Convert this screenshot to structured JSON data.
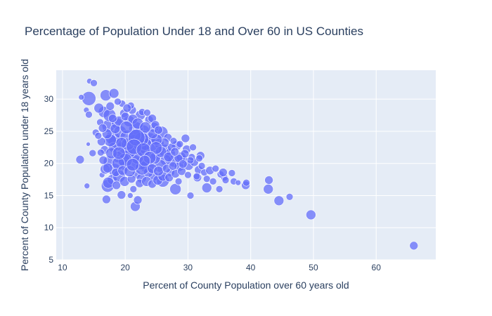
{
  "chart_data": {
    "type": "scatter",
    "title": "Percentage of Population Under 18 and Over 60 in US Counties",
    "xlabel": "Percent of County Population over 60 years old",
    "ylabel": "Percent of County Population under 18 years old",
    "xlim": [
      9,
      69.5
    ],
    "ylim": [
      5,
      34.5
    ],
    "xticks": [
      10,
      20,
      30,
      40,
      50,
      60
    ],
    "yticks": [
      5,
      10,
      15,
      20,
      25,
      30
    ],
    "grid": true,
    "legend": "none",
    "colors": {
      "marker": "#636efa",
      "plot_bg": "#e5ecf6",
      "grid": "#ffffff",
      "text": "#2a3f5f"
    },
    "series": [
      {
        "points": [
          [
            66.0,
            7.2,
            6
          ],
          [
            49.6,
            12.0,
            7
          ],
          [
            44.5,
            14.2,
            7
          ],
          [
            46.2,
            14.8,
            5
          ],
          [
            42.8,
            16.0,
            7
          ],
          [
            42.9,
            17.4,
            6
          ],
          [
            39.2,
            16.6,
            6
          ],
          [
            39.3,
            17.0,
            5
          ],
          [
            37.3,
            17.2,
            5
          ],
          [
            37.0,
            18.5,
            5
          ],
          [
            35.8,
            17.8,
            5
          ],
          [
            35.2,
            18.3,
            5
          ],
          [
            35.0,
            16.0,
            5
          ],
          [
            33.0,
            16.2,
            7
          ],
          [
            31.5,
            17.8,
            6
          ],
          [
            30.4,
            15.0,
            5
          ],
          [
            32.0,
            21.2,
            6
          ],
          [
            29.6,
            23.9,
            6
          ],
          [
            28.0,
            16.0,
            8
          ],
          [
            28.5,
            17.2,
            5
          ],
          [
            27.2,
            18.6,
            6
          ],
          [
            26.0,
            17.3,
            9
          ],
          [
            24.5,
            18.0,
            7
          ],
          [
            23.5,
            19.6,
            10
          ],
          [
            22.5,
            20.0,
            9
          ],
          [
            21.5,
            20.2,
            10
          ],
          [
            20.5,
            21.5,
            8
          ],
          [
            19.5,
            22.3,
            9
          ],
          [
            18.5,
            23.1,
            11
          ],
          [
            18.0,
            24.0,
            10
          ],
          [
            17.3,
            25.8,
            9
          ],
          [
            16.6,
            28.0,
            8
          ],
          [
            15.8,
            28.6,
            7
          ],
          [
            14.2,
            30.1,
            10
          ],
          [
            17.5,
            27.5,
            9
          ],
          [
            16.9,
            30.6,
            8
          ],
          [
            18.2,
            30.9,
            7
          ],
          [
            14.3,
            32.8,
            4
          ],
          [
            15.0,
            32.5,
            5
          ],
          [
            13.0,
            30.3,
            4
          ],
          [
            13.8,
            28.3,
            4
          ],
          [
            14.2,
            27.6,
            5
          ],
          [
            12.8,
            20.6,
            6
          ],
          [
            13.9,
            16.5,
            4
          ],
          [
            14.8,
            21.6,
            5
          ],
          [
            14.1,
            23.0,
            3
          ],
          [
            15.3,
            24.8,
            5
          ],
          [
            16.0,
            26.4,
            5
          ],
          [
            16.3,
            18.2,
            4
          ],
          [
            17.2,
            16.5,
            9
          ],
          [
            17.0,
            14.4,
            6
          ],
          [
            19.4,
            15.1,
            6
          ],
          [
            21.6,
            13.3,
            7
          ],
          [
            22.0,
            14.3,
            6
          ],
          [
            21.3,
            16.0,
            5
          ],
          [
            20.8,
            15.0,
            4
          ],
          [
            16.7,
            22.1,
            6
          ],
          [
            17.4,
            20.3,
            8
          ],
          [
            18.3,
            19.0,
            9
          ],
          [
            17.9,
            17.5,
            7
          ],
          [
            19.0,
            18.0,
            9
          ],
          [
            20.1,
            19.7,
            8
          ],
          [
            21.8,
            18.3,
            6
          ],
          [
            22.6,
            17.7,
            7
          ],
          [
            23.2,
            21.7,
            9
          ],
          [
            24.1,
            22.9,
            10
          ],
          [
            25.0,
            21.2,
            8
          ],
          [
            25.8,
            24.8,
            9
          ],
          [
            24.6,
            25.6,
            7
          ],
          [
            23.8,
            26.8,
            6
          ],
          [
            22.9,
            25.0,
            9
          ],
          [
            21.7,
            25.4,
            10
          ],
          [
            20.6,
            26.6,
            8
          ],
          [
            19.8,
            27.8,
            6
          ],
          [
            21.1,
            28.3,
            6
          ],
          [
            22.4,
            27.5,
            7
          ],
          [
            20.9,
            29.0,
            5
          ],
          [
            19.5,
            29.3,
            5
          ],
          [
            18.7,
            26.2,
            8
          ],
          [
            19.2,
            24.9,
            9
          ],
          [
            20.3,
            24.1,
            10
          ],
          [
            21.4,
            23.4,
            10
          ],
          [
            22.2,
            22.5,
            11
          ],
          [
            23.0,
            24.1,
            9
          ],
          [
            24.0,
            23.9,
            8
          ],
          [
            25.4,
            23.1,
            7
          ],
          [
            26.3,
            22.0,
            9
          ],
          [
            27.1,
            21.5,
            8
          ],
          [
            27.8,
            20.4,
            9
          ],
          [
            28.6,
            19.5,
            7
          ],
          [
            29.3,
            20.6,
            6
          ],
          [
            30.1,
            19.7,
            7
          ],
          [
            31.0,
            20.2,
            6
          ],
          [
            31.7,
            19.0,
            6
          ],
          [
            32.6,
            18.6,
            5
          ],
          [
            33.5,
            18.9,
            6
          ],
          [
            34.4,
            19.2,
            5
          ],
          [
            35.6,
            18.6,
            6
          ],
          [
            30.6,
            21.0,
            5
          ],
          [
            29.8,
            22.2,
            6
          ],
          [
            28.9,
            21.0,
            7
          ],
          [
            28.2,
            22.8,
            7
          ],
          [
            27.4,
            22.5,
            6
          ],
          [
            26.5,
            20.5,
            8
          ],
          [
            25.6,
            19.6,
            9
          ],
          [
            24.7,
            20.8,
            8
          ],
          [
            23.7,
            18.6,
            7
          ],
          [
            22.7,
            19.3,
            10
          ],
          [
            21.9,
            20.9,
            9
          ],
          [
            20.8,
            21.8,
            8
          ],
          [
            19.7,
            20.6,
            9
          ],
          [
            18.8,
            21.0,
            8
          ],
          [
            18.1,
            22.5,
            7
          ],
          [
            17.6,
            23.6,
            9
          ],
          [
            17.1,
            24.6,
            7
          ],
          [
            16.4,
            25.5,
            6
          ],
          [
            16.2,
            23.4,
            6
          ],
          [
            15.7,
            24.3,
            5
          ],
          [
            16.8,
            19.1,
            7
          ],
          [
            17.3,
            17.0,
            8
          ],
          [
            18.6,
            16.6,
            6
          ],
          [
            19.9,
            17.2,
            7
          ],
          [
            21.0,
            17.6,
            6
          ],
          [
            22.3,
            16.9,
            6
          ],
          [
            23.4,
            17.2,
            7
          ],
          [
            24.3,
            16.8,
            6
          ],
          [
            25.2,
            17.4,
            7
          ],
          [
            26.0,
            18.0,
            7
          ],
          [
            27.0,
            17.8,
            6
          ],
          [
            28.0,
            18.4,
            6
          ],
          [
            29.0,
            18.8,
            6
          ],
          [
            30.0,
            18.2,
            5
          ],
          [
            31.4,
            18.0,
            5
          ],
          [
            32.2,
            19.6,
            5
          ],
          [
            33.0,
            17.6,
            5
          ],
          [
            34.0,
            17.2,
            5
          ],
          [
            36.0,
            17.4,
            5
          ],
          [
            38.0,
            17.0,
            4
          ],
          [
            26.8,
            24.0,
            6
          ],
          [
            27.7,
            23.5,
            5
          ],
          [
            28.7,
            23.0,
            5
          ],
          [
            29.5,
            21.5,
            6
          ],
          [
            30.8,
            22.5,
            5
          ],
          [
            31.8,
            20.8,
            5
          ],
          [
            26.2,
            23.2,
            7
          ],
          [
            25.0,
            23.7,
            8
          ],
          [
            24.4,
            24.6,
            7
          ],
          [
            23.2,
            23.0,
            9
          ],
          [
            22.6,
            23.8,
            10
          ],
          [
            21.5,
            24.4,
            9
          ],
          [
            20.4,
            23.0,
            9
          ],
          [
            19.4,
            23.2,
            8
          ],
          [
            18.4,
            25.4,
            7
          ],
          [
            19.0,
            26.6,
            7
          ],
          [
            20.0,
            27.3,
            6
          ],
          [
            21.2,
            26.9,
            7
          ],
          [
            22.0,
            26.2,
            8
          ],
          [
            23.2,
            25.6,
            8
          ],
          [
            24.3,
            27.0,
            6
          ],
          [
            21.8,
            24.0,
            12
          ],
          [
            21.4,
            22.6,
            11
          ],
          [
            22.9,
            22.1,
            10
          ],
          [
            20.0,
            20.5,
            10
          ],
          [
            18.9,
            20.0,
            9
          ],
          [
            17.8,
            21.6,
            8
          ],
          [
            17.2,
            19.3,
            7
          ],
          [
            16.5,
            20.5,
            6
          ],
          [
            16.1,
            21.7,
            5
          ],
          [
            18.5,
            18.6,
            6
          ],
          [
            19.6,
            18.9,
            7
          ],
          [
            20.7,
            18.8,
            8
          ],
          [
            21.2,
            19.8,
            9
          ],
          [
            25.7,
            21.8,
            8
          ],
          [
            26.9,
            21.0,
            7
          ],
          [
            24.9,
            22.4,
            9
          ],
          [
            23.9,
            20.9,
            9
          ],
          [
            23.1,
            20.4,
            8
          ],
          [
            24.3,
            19.2,
            7
          ],
          [
            25.3,
            18.8,
            7
          ],
          [
            26.6,
            19.2,
            6
          ],
          [
            27.6,
            19.6,
            6
          ],
          [
            28.5,
            20.8,
            6
          ],
          [
            29.2,
            19.9,
            6
          ],
          [
            30.4,
            20.5,
            5
          ],
          [
            27.9,
            21.8,
            6
          ],
          [
            20.2,
            25.6,
            9
          ],
          [
            19.0,
            21.6,
            9
          ],
          [
            18.0,
            27.0,
            6
          ],
          [
            17.6,
            28.9,
            6
          ],
          [
            18.8,
            29.6,
            5
          ],
          [
            20.3,
            28.6,
            6
          ],
          [
            22.7,
            28.0,
            5
          ],
          [
            24.8,
            26.0,
            6
          ],
          [
            23.5,
            27.9,
            5
          ],
          [
            25.3,
            25.2,
            6
          ]
        ]
      }
    ]
  }
}
